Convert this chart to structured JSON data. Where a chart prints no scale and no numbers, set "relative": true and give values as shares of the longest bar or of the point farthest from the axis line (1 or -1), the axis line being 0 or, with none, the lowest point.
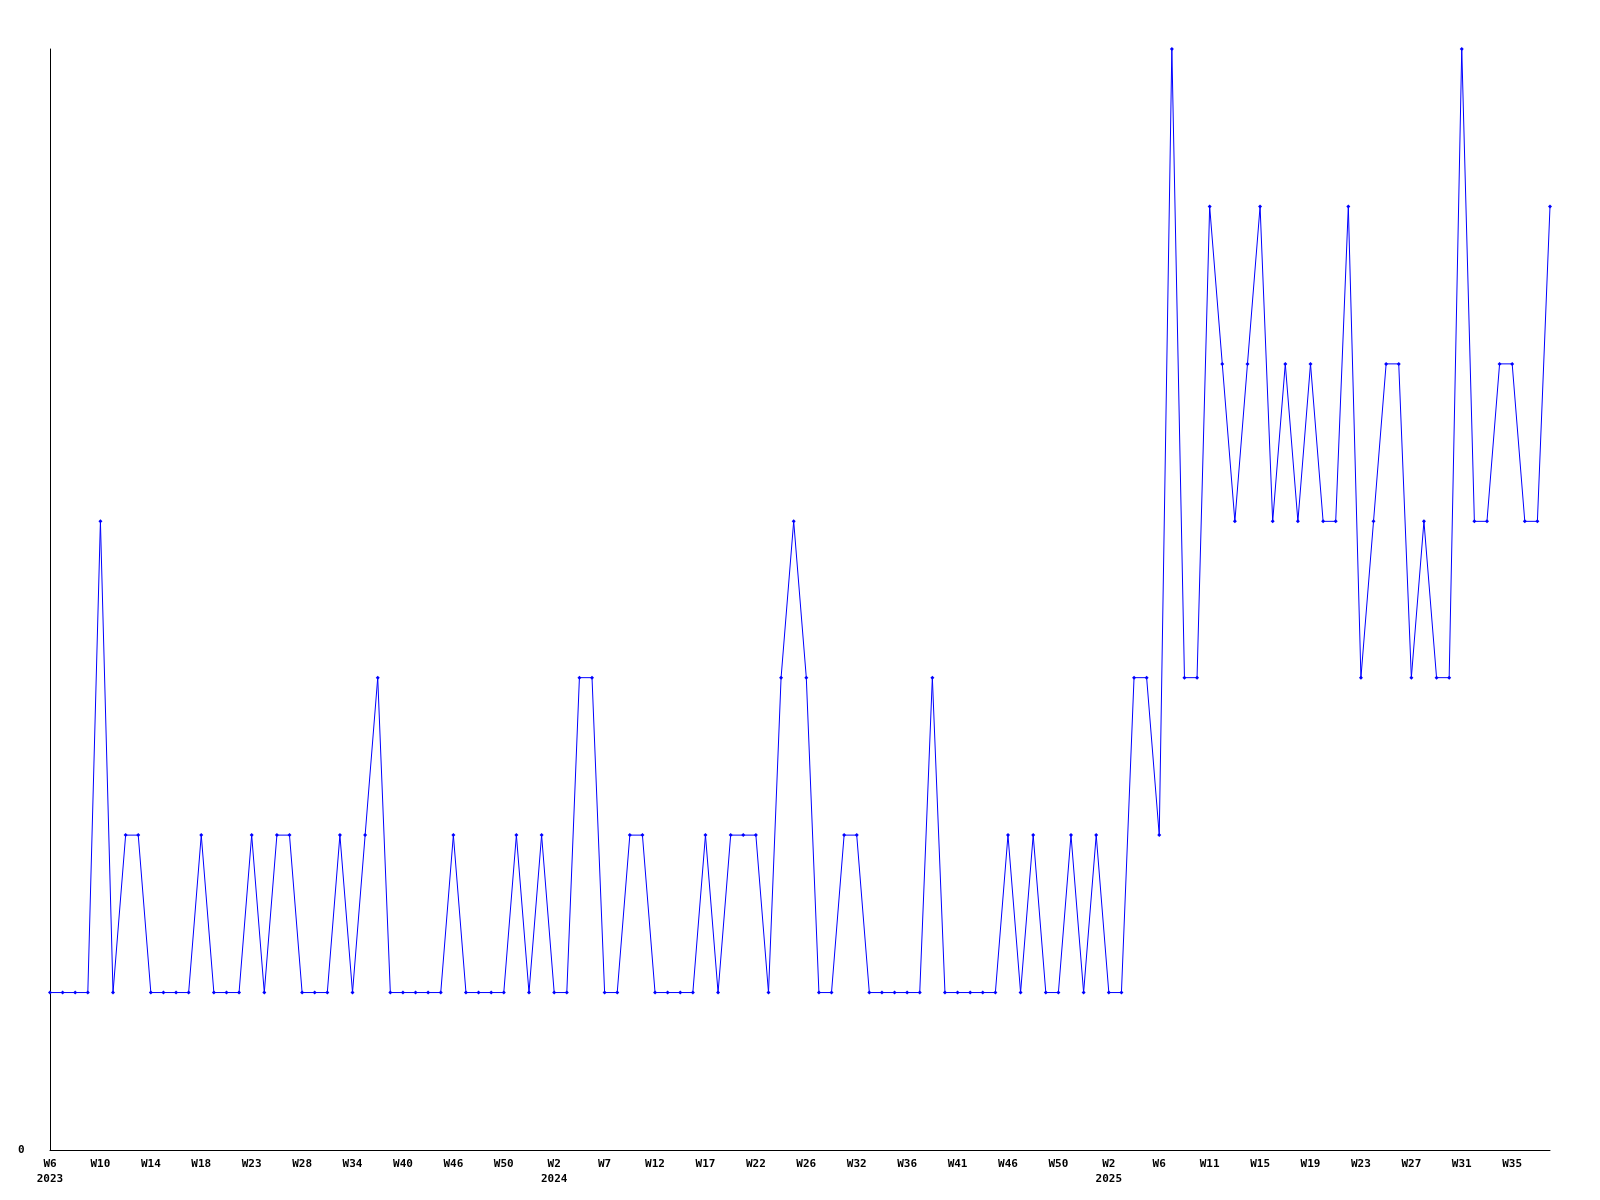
{
  "chart_data": {
    "type": "line",
    "relative": true,
    "marker": "diamond",
    "line_style": "solid",
    "categories": [
      "W6\n2023",
      null,
      null,
      null,
      "W10",
      null,
      null,
      null,
      "W14",
      null,
      null,
      null,
      "W18",
      null,
      null,
      null,
      "W23",
      null,
      null,
      null,
      "W28",
      null,
      null,
      null,
      "W34",
      null,
      null,
      null,
      "W40",
      null,
      null,
      null,
      "W46",
      null,
      null,
      null,
      "W50",
      null,
      null,
      null,
      "W2\n2024",
      null,
      null,
      null,
      "W7",
      null,
      null,
      null,
      "W12",
      null,
      null,
      null,
      "W17",
      null,
      null,
      null,
      "W22",
      null,
      null,
      null,
      "W26",
      null,
      null,
      null,
      "W32",
      null,
      null,
      null,
      "W36",
      null,
      null,
      null,
      "W41",
      null,
      null,
      null,
      "W46",
      null,
      null,
      null,
      "W50",
      null,
      null,
      null,
      "W2\n2025",
      null,
      null,
      null,
      "W6",
      null,
      null,
      null,
      "W11",
      null,
      null,
      null,
      "W15",
      null,
      null,
      null,
      "W19",
      null,
      null,
      null,
      "W23",
      null,
      null,
      null,
      "W27",
      null,
      null,
      null,
      "W31",
      null,
      null,
      null,
      "W35",
      null,
      null,
      null
    ],
    "series": [
      {
        "color": "#0000ff",
        "values": [
          0.143,
          0.143,
          0.143,
          0.143,
          0.571,
          0.143,
          0.286,
          0.286,
          0.143,
          0.143,
          0.143,
          0.143,
          0.286,
          0.143,
          0.143,
          0.143,
          0.286,
          0.143,
          0.286,
          0.286,
          0.143,
          0.143,
          0.143,
          0.286,
          0.143,
          0.286,
          0.429,
          0.143,
          0.143,
          0.143,
          0.143,
          0.143,
          0.286,
          0.143,
          0.143,
          0.143,
          0.143,
          0.286,
          0.143,
          0.286,
          0.143,
          0.143,
          0.429,
          0.429,
          0.143,
          0.143,
          0.286,
          0.286,
          0.143,
          0.143,
          0.143,
          0.143,
          0.286,
          0.143,
          0.286,
          0.286,
          0.286,
          0.143,
          0.429,
          0.571,
          0.429,
          0.143,
          0.143,
          0.286,
          0.286,
          0.143,
          0.143,
          0.143,
          0.143,
          0.143,
          0.429,
          0.143,
          0.143,
          0.143,
          0.143,
          0.143,
          0.286,
          0.143,
          0.286,
          0.143,
          0.143,
          0.286,
          0.143,
          0.286,
          0.143,
          0.143,
          0.429,
          0.429,
          0.286,
          1,
          0.429,
          0.429,
          0.857,
          0.714,
          0.571,
          0.714,
          0.857,
          0.571,
          0.714,
          0.571,
          0.714,
          0.571,
          0.571,
          0.857,
          0.429,
          0.571,
          0.714,
          0.714,
          0.429,
          0.571,
          0.429,
          0.429,
          1,
          0.571,
          0.571,
          0.714,
          0.714,
          0.571,
          0.571,
          0.857
        ]
      }
    ],
    "annotations": [
      "0"
    ]
  }
}
